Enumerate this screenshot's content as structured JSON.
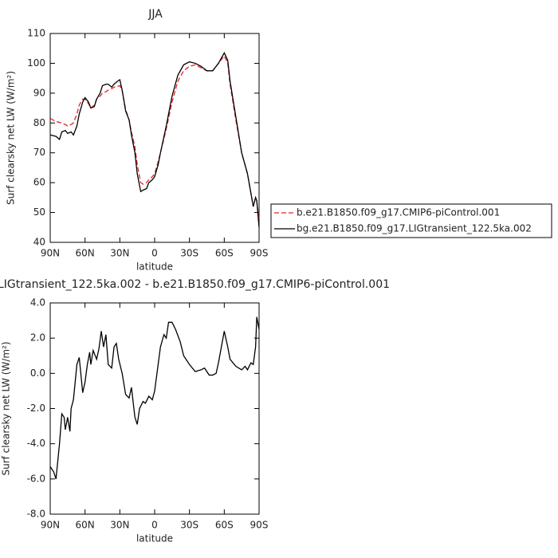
{
  "chart_data": [
    {
      "type": "line",
      "title": "JJA",
      "x_label": "latitude",
      "y_label": "Surf clearsky net LW (W/m²)",
      "x": [
        90,
        85,
        82,
        80,
        77,
        75,
        72,
        70,
        67,
        65,
        62,
        60,
        57,
        55,
        52,
        50,
        47,
        45,
        42,
        40,
        37,
        35,
        32,
        30,
        28,
        25,
        22,
        20,
        17,
        15,
        12,
        10,
        7,
        5,
        2,
        0,
        -3,
        -5,
        -10,
        -15,
        -20,
        -25,
        -30,
        -35,
        -40,
        -45,
        -50,
        -55,
        -60,
        -63,
        -65,
        -70,
        -75,
        -80,
        -85,
        -87,
        -88,
        -90
      ],
      "series": [
        {
          "name": "b.e21.B1850.f09_g17.CMIP6-piControl.001",
          "color": "#e8202a",
          "dash": "dashed",
          "values": [
            81.5,
            80.5,
            80.2,
            80,
            79.5,
            79,
            79.5,
            80,
            83,
            86,
            88,
            88,
            86.5,
            85,
            86,
            88,
            89,
            90,
            90.5,
            91,
            91.5,
            92,
            92.3,
            92.5,
            91,
            84.5,
            81,
            77,
            72,
            66,
            60,
            59.5,
            60,
            61,
            62,
            63,
            67,
            70,
            78,
            87,
            94,
            97.5,
            99,
            99.5,
            98.5,
            97.5,
            97.5,
            100,
            102.5,
            100,
            93,
            81,
            70,
            63,
            52,
            55,
            54,
            47
          ]
        },
        {
          "name": "bg.e21.B1850.f09_g17.LIGtransient_122.5ka.002",
          "color": "#000000",
          "dash": "solid",
          "values": [
            76,
            75.5,
            74.5,
            77,
            77.5,
            76.5,
            77,
            76,
            79,
            83,
            87,
            88.5,
            87,
            85,
            85.5,
            88,
            90,
            92.5,
            93,
            93,
            92,
            93,
            94,
            94.5,
            91,
            84,
            81,
            76,
            70,
            63,
            57,
            57.5,
            58,
            60,
            61,
            62,
            66,
            70,
            79,
            89,
            96,
            99.5,
            100.5,
            100,
            99,
            97.5,
            97.5,
            100,
            103.5,
            101,
            94,
            82,
            70,
            63,
            52,
            55,
            54,
            45
          ]
        }
      ],
      "xlim": [
        90,
        -90
      ],
      "xticks": [
        {
          "value": 90,
          "label": "90N"
        },
        {
          "value": 60,
          "label": "60N"
        },
        {
          "value": 30,
          "label": "30N"
        },
        0,
        {
          "value": -30,
          "label": "30S"
        },
        {
          "value": -60,
          "label": "60S"
        },
        {
          "value": -90,
          "label": "90S"
        }
      ],
      "ylim": [
        40,
        110
      ],
      "yticks": [
        40,
        50,
        60,
        70,
        80,
        90,
        100,
        110
      ],
      "legend": "right"
    },
    {
      "type": "line",
      "title": "LIGtransient_122.5ka.002 - b.e21.B1850.f09_g17.CMIP6-piControl.001",
      "x_label": "latitude",
      "y_label": "Surf clearsky net LW (W/m²)",
      "x": [
        90,
        87,
        85,
        82,
        80,
        78,
        77,
        75,
        73,
        72,
        70,
        67,
        65,
        62,
        60,
        58,
        56,
        55,
        53,
        50,
        48,
        46,
        44,
        42,
        40,
        37,
        35,
        33,
        31,
        28,
        25,
        22,
        20,
        17,
        15,
        13,
        10,
        8,
        5,
        2,
        0,
        -3,
        -5,
        -8,
        -10,
        -12,
        -15,
        -18,
        -22,
        -25,
        -30,
        -35,
        -40,
        -43,
        -47,
        -50,
        -53,
        -55,
        -60,
        -63,
        -65,
        -70,
        -75,
        -78,
        -80,
        -83,
        -85,
        -87,
        -88,
        -90
      ],
      "series": [
        {
          "color": "#000000",
          "dash": "solid",
          "values": [
            -5.3,
            -5.6,
            -6.0,
            -4.0,
            -2.3,
            -2.5,
            -3.2,
            -2.5,
            -3.3,
            -2.0,
            -1.5,
            0.5,
            0.9,
            -1.1,
            -0.5,
            0.5,
            1.2,
            0.5,
            1.3,
            0.8,
            1.4,
            2.4,
            1.5,
            2.2,
            0.5,
            0.3,
            1.5,
            1.7,
            0.8,
            0.0,
            -1.2,
            -1.4,
            -0.8,
            -2.5,
            -2.9,
            -2.0,
            -1.6,
            -1.7,
            -1.3,
            -1.5,
            -1.0,
            0.5,
            1.5,
            2.2,
            2.0,
            2.9,
            2.9,
            2.5,
            1.8,
            1.0,
            0.5,
            0.1,
            0.2,
            0.3,
            -0.1,
            -0.1,
            0.0,
            0.6,
            2.4,
            1.5,
            0.8,
            0.4,
            0.2,
            0.4,
            0.2,
            0.6,
            0.5,
            1.5,
            3.2,
            2.5
          ]
        }
      ],
      "xlim": [
        90,
        -90
      ],
      "xticks": [
        {
          "value": 90,
          "label": "90N"
        },
        {
          "value": 60,
          "label": "60N"
        },
        {
          "value": 30,
          "label": "30N"
        },
        0,
        {
          "value": -30,
          "label": "30S"
        },
        {
          "value": -60,
          "label": "60S"
        },
        {
          "value": -90,
          "label": "90S"
        }
      ],
      "ylim": [
        -8,
        4
      ],
      "yticks": [
        {
          "value": -8,
          "label": "-8.0"
        },
        {
          "value": -6,
          "label": "-6.0"
        },
        {
          "value": -4,
          "label": "-4.0"
        },
        {
          "value": -2,
          "label": "-2.0"
        },
        {
          "value": 0,
          "label": "0.0"
        },
        {
          "value": 2,
          "label": "2.0"
        },
        {
          "value": 4,
          "label": "4.0"
        }
      ]
    }
  ]
}
